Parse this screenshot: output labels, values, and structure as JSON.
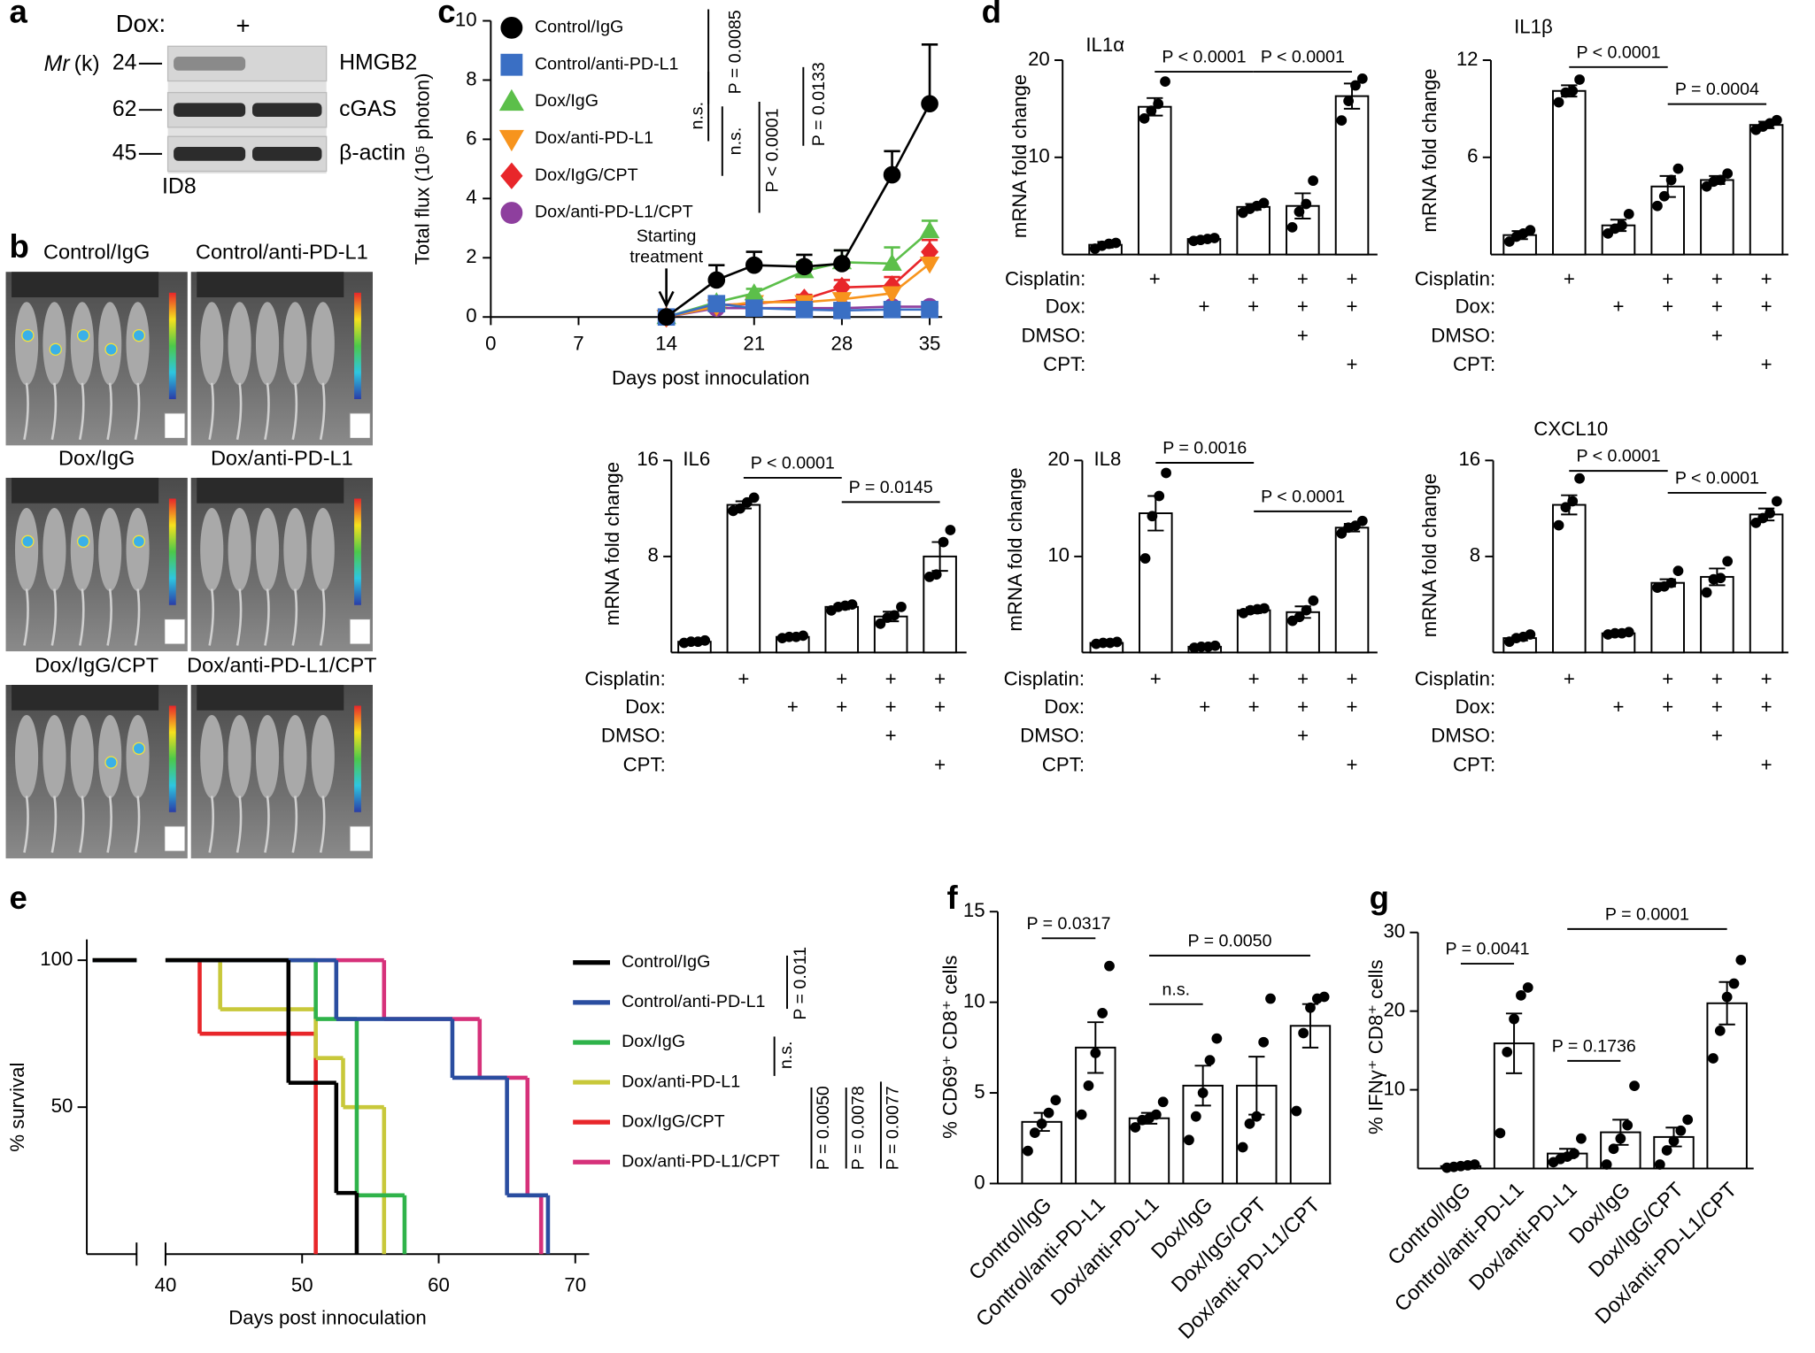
{
  "panel_labels": [
    "a",
    "b",
    "c",
    "d",
    "e",
    "f",
    "g"
  ],
  "blot": {
    "dox_label": "Dox:",
    "dox_marks": [
      null,
      "+"
    ],
    "mr_symbol": "Mr",
    "mr_unit": "(k)",
    "rows": [
      {
        "mw": 24,
        "protein": "HMGB2"
      },
      {
        "mw": 62,
        "protein": "cGAS"
      },
      {
        "mw": 45,
        "protein": "β-actin"
      }
    ],
    "cell_line": "ID8"
  },
  "imaging": {
    "groups": [
      "Control/IgG",
      "Control/anti-PD-L1",
      "Dox/IgG",
      "Dox/anti-PD-L1",
      "Dox/IgG/CPT",
      "Dox/anti-PD-L1/CPT"
    ]
  },
  "chart_data": [
    {
      "type": "line",
      "ylabel": "Total flux (10⁵ photon)",
      "xlabel": "Days post innoculation",
      "xlim": [
        0,
        36
      ],
      "xticks": [
        0,
        7,
        14,
        21,
        28,
        35
      ],
      "ylim": [
        0,
        10
      ],
      "yticks": [
        0,
        2,
        4,
        6,
        8,
        10
      ],
      "x": [
        14,
        18,
        21,
        25,
        28,
        32,
        35
      ],
      "series": [
        {
          "name": "Control/IgG",
          "color": "#000000",
          "marker": "circle",
          "values": [
            0,
            1.25,
            1.75,
            1.7,
            1.8,
            4.8,
            7.2
          ],
          "errors": [
            0,
            0.5,
            0.45,
            0.4,
            0.45,
            0.8,
            2.0
          ]
        },
        {
          "name": "Control/anti-PD-L1",
          "color": "#3a6fc4",
          "marker": "square",
          "values": [
            0,
            0.45,
            0.3,
            0.25,
            0.22,
            0.25,
            0.25
          ]
        },
        {
          "name": "Dox/IgG",
          "color": "#5cbf4a",
          "marker": "triangle-up",
          "values": [
            0,
            0.5,
            0.8,
            1.55,
            1.85,
            1.8,
            2.9
          ],
          "errors": [
            0,
            0.1,
            0.15,
            0.3,
            0.4,
            0.55,
            0.35
          ]
        },
        {
          "name": "Dox/anti-PD-L1",
          "color": "#f7941d",
          "marker": "triangle-down",
          "values": [
            0,
            0.35,
            0.5,
            0.5,
            0.6,
            0.8,
            1.8
          ]
        },
        {
          "name": "Dox/IgG/CPT",
          "color": "#e8262a",
          "marker": "diamond",
          "values": [
            0,
            0.4,
            0.45,
            0.6,
            1.0,
            1.05,
            2.2
          ],
          "errors": [
            0,
            0.1,
            0.1,
            0.15,
            0.25,
            0.3,
            0.4
          ]
        },
        {
          "name": "Dox/anti-PD-L1/CPT",
          "color": "#8e3f9e",
          "marker": "circle",
          "values": [
            0,
            0.3,
            0.3,
            0.3,
            0.3,
            0.35,
            0.35
          ]
        }
      ],
      "arrow_label": [
        "Starting",
        "treatment"
      ],
      "annotations": [
        "P = 0.0085",
        "n.s.",
        "n.s.",
        "P < 0.0001",
        "P = 0.0133"
      ]
    },
    {
      "type": "bar",
      "title": "IL1α",
      "ylabel": "mRNA fold change",
      "color": "#ffffff",
      "ylim": [
        0,
        20
      ],
      "yticks": [
        10,
        20
      ],
      "values": [
        1.0,
        15.2,
        1.6,
        4.9,
        5.0,
        16.3
      ],
      "errors": [
        0.3,
        0.9,
        0.2,
        0.3,
        1.3,
        1.3
      ],
      "points": [
        [
          0.6,
          0.9,
          1.1,
          1.2
        ],
        [
          14.0,
          14.8,
          15.5,
          17.8
        ],
        [
          1.4,
          1.5,
          1.6,
          1.7
        ],
        [
          4.3,
          4.7,
          5.0,
          5.3
        ],
        [
          2.8,
          4.4,
          5.2,
          7.6
        ],
        [
          13.8,
          15.8,
          17.4,
          18.1
        ]
      ],
      "annotations": [
        "P < 0.0001",
        "P < 0.0001"
      ],
      "conditions": [
        {
          "label": "Cisplatin:",
          "marks": [
            null,
            "+",
            null,
            "+",
            "+",
            "+"
          ]
        },
        {
          "label": "Dox:",
          "marks": [
            null,
            null,
            "+",
            "+",
            "+",
            "+"
          ]
        },
        {
          "label": "DMSO:",
          "marks": [
            null,
            null,
            null,
            null,
            "+",
            null
          ]
        },
        {
          "label": "CPT:",
          "marks": [
            null,
            null,
            null,
            null,
            null,
            "+"
          ]
        }
      ]
    },
    {
      "type": "bar",
      "title": "IL1β",
      "ylabel": "mRNA fold change",
      "color": "#ffffff",
      "ylim": [
        0,
        12
      ],
      "yticks": [
        6,
        12
      ],
      "values": [
        1.2,
        10.1,
        1.8,
        4.2,
        4.6,
        8.0
      ],
      "errors": [
        0.25,
        0.35,
        0.35,
        0.65,
        0.25,
        0.2
      ],
      "points": [
        [
          0.8,
          1.1,
          1.3,
          1.5
        ],
        [
          9.4,
          10.0,
          10.1,
          10.8
        ],
        [
          1.3,
          1.6,
          1.8,
          2.5
        ],
        [
          3.0,
          3.6,
          4.6,
          5.3
        ],
        [
          4.2,
          4.5,
          4.6,
          5.0
        ],
        [
          7.7,
          7.9,
          8.1,
          8.3
        ]
      ],
      "annotations": [
        "P < 0.0001",
        "P = 0.0004"
      ],
      "conditions": [
        {
          "label": "Cisplatin:",
          "marks": [
            null,
            "+",
            null,
            "+",
            "+",
            "+"
          ]
        },
        {
          "label": "Dox:",
          "marks": [
            null,
            null,
            "+",
            "+",
            "+",
            "+"
          ]
        },
        {
          "label": "DMSO:",
          "marks": [
            null,
            null,
            null,
            null,
            "+",
            null
          ]
        },
        {
          "label": "CPT:",
          "marks": [
            null,
            null,
            null,
            null,
            null,
            "+"
          ]
        }
      ]
    },
    {
      "type": "bar",
      "title": "IL6",
      "ylabel": "mRNA fold change",
      "color": "#ffffff",
      "ylim": [
        0,
        16
      ],
      "yticks": [
        8,
        16
      ],
      "values": [
        0.9,
        12.3,
        1.3,
        3.8,
        3.0,
        8.0
      ],
      "errors": [
        0.1,
        0.3,
        0.15,
        0.2,
        0.4,
        1.2
      ],
      "points": [
        [
          0.8,
          0.9,
          0.9,
          1.0
        ],
        [
          11.8,
          12.0,
          12.5,
          12.9
        ],
        [
          1.2,
          1.3,
          1.3,
          1.4
        ],
        [
          3.5,
          3.8,
          3.9,
          4.0
        ],
        [
          2.4,
          2.9,
          3.1,
          3.8
        ],
        [
          6.3,
          6.5,
          9.2,
          10.2
        ]
      ],
      "annotations": [
        "P < 0.0001",
        "P = 0.0145"
      ],
      "conditions": [
        {
          "label": "Cisplatin:",
          "marks": [
            null,
            "+",
            null,
            "+",
            "+",
            "+"
          ]
        },
        {
          "label": "Dox:",
          "marks": [
            null,
            null,
            "+",
            "+",
            "+",
            "+"
          ]
        },
        {
          "label": "DMSO:",
          "marks": [
            null,
            null,
            null,
            null,
            "+",
            null
          ]
        },
        {
          "label": "CPT:",
          "marks": [
            null,
            null,
            null,
            null,
            null,
            "+"
          ]
        }
      ]
    },
    {
      "type": "bar",
      "title": "IL8",
      "ylabel": "mRNA fold change",
      "color": "#ffffff",
      "ylim": [
        0,
        20
      ],
      "yticks": [
        10,
        20
      ],
      "values": [
        1.0,
        14.5,
        0.6,
        4.4,
        4.2,
        13.0
      ],
      "errors": [
        0.1,
        1.8,
        0.1,
        0.3,
        0.6,
        0.4
      ],
      "points": [
        [
          0.9,
          1.0,
          1.0,
          1.1
        ],
        [
          9.8,
          14.2,
          16.3,
          18.7
        ],
        [
          0.5,
          0.6,
          0.6,
          0.7
        ],
        [
          4.1,
          4.4,
          4.5,
          4.6
        ],
        [
          3.3,
          3.7,
          4.4,
          5.4
        ],
        [
          12.4,
          13.0,
          13.2,
          13.7
        ]
      ],
      "annotations": [
        "P = 0.0016",
        "P < 0.0001"
      ],
      "conditions": [
        {
          "label": "Cisplatin:",
          "marks": [
            null,
            "+",
            null,
            "+",
            "+",
            "+"
          ]
        },
        {
          "label": "Dox:",
          "marks": [
            null,
            null,
            "+",
            "+",
            "+",
            "+"
          ]
        },
        {
          "label": "DMSO:",
          "marks": [
            null,
            null,
            null,
            null,
            "+",
            null
          ]
        },
        {
          "label": "CPT:",
          "marks": [
            null,
            null,
            null,
            null,
            null,
            "+"
          ]
        }
      ]
    },
    {
      "type": "bar",
      "title": "CXCL10",
      "ylabel": "mRNA fold change",
      "color": "#ffffff",
      "ylim": [
        0,
        16
      ],
      "yticks": [
        8,
        16
      ],
      "values": [
        1.2,
        12.3,
        1.6,
        5.8,
        6.3,
        11.5
      ],
      "errors": [
        0.2,
        0.8,
        0.1,
        0.3,
        0.7,
        0.5
      ],
      "points": [
        [
          0.9,
          1.2,
          1.3,
          1.5
        ],
        [
          10.6,
          12.1,
          12.6,
          14.5
        ],
        [
          1.5,
          1.6,
          1.6,
          1.7
        ],
        [
          5.4,
          5.5,
          5.8,
          6.8
        ],
        [
          5.0,
          6.1,
          6.2,
          7.6
        ],
        [
          10.8,
          11.2,
          11.6,
          12.6
        ]
      ],
      "annotations": [
        "P < 0.0001",
        "P < 0.0001"
      ],
      "conditions": [
        {
          "label": "Cisplatin:",
          "marks": [
            null,
            "+",
            null,
            "+",
            "+",
            "+"
          ]
        },
        {
          "label": "Dox:",
          "marks": [
            null,
            null,
            "+",
            "+",
            "+",
            "+"
          ]
        },
        {
          "label": "DMSO:",
          "marks": [
            null,
            null,
            null,
            null,
            "+",
            null
          ]
        },
        {
          "label": "CPT:",
          "marks": [
            null,
            null,
            null,
            null,
            null,
            "+"
          ]
        }
      ]
    },
    {
      "type": "step",
      "ylabel": "% survival",
      "xlabel": "Days post innoculation",
      "xlim": [
        40,
        70
      ],
      "xticks": [
        40,
        50,
        60,
        70
      ],
      "ylim": [
        0,
        100
      ],
      "yticks": [
        50,
        100
      ],
      "series": [
        {
          "name": "Control/IgG",
          "color": "#000000",
          "x": [
            40,
            49,
            52.5,
            54
          ],
          "values": [
            100,
            58.3,
            20.8,
            0
          ]
        },
        {
          "name": "Control/anti-PD-L1",
          "color": "#2a4da0",
          "x": [
            40,
            52.5,
            61,
            65,
            68
          ],
          "values": [
            100,
            80,
            60,
            20,
            0
          ]
        },
        {
          "name": "Dox/IgG",
          "color": "#2fb34a",
          "x": [
            40,
            51,
            54,
            57.5
          ],
          "values": [
            100,
            80,
            20,
            0
          ]
        },
        {
          "name": "Dox/anti-PD-L1",
          "color": "#c8c83a",
          "x": [
            40,
            44,
            51,
            53,
            56
          ],
          "values": [
            100,
            83.3,
            66.7,
            50,
            0
          ]
        },
        {
          "name": "Dox/IgG/CPT",
          "color": "#e8262a",
          "x": [
            40,
            42.5,
            51
          ],
          "values": [
            100,
            75,
            0
          ]
        },
        {
          "name": "Dox/anti-PD-L1/CPT",
          "color": "#d6317a",
          "x": [
            40,
            56,
            63,
            66.5,
            67.5
          ],
          "values": [
            100,
            80,
            60,
            20,
            0
          ]
        }
      ],
      "annotations": [
        "P = 0.011",
        "n.s.",
        "P = 0.0050",
        "P = 0.0078",
        "P = 0.0077"
      ]
    },
    {
      "type": "bar",
      "ylabel": "% CD69⁺ CD8⁺ cells",
      "color": "#ffffff",
      "categories": [
        "Control/IgG",
        "Control/anti-PD-L1",
        "Dox/anti-PD-L1",
        "Dox/IgG",
        "Dox/IgG/CPT",
        "Dox/anti-PD-L1/CPT"
      ],
      "ylim": [
        0,
        15
      ],
      "yticks": [
        0,
        5,
        10,
        15
      ],
      "values": [
        3.4,
        7.5,
        3.6,
        5.4,
        5.4,
        8.7
      ],
      "errors": [
        0.5,
        1.4,
        0.3,
        1.1,
        1.6,
        1.2
      ],
      "points": [
        [
          1.8,
          2.8,
          3.3,
          3.9,
          4.6
        ],
        [
          3.8,
          5.4,
          7.2,
          9.4,
          12.0
        ],
        [
          3.1,
          3.5,
          3.6,
          3.8,
          4.5
        ],
        [
          2.4,
          3.7,
          5.0,
          6.8,
          8.0
        ],
        [
          2.0,
          3.3,
          3.7,
          7.8,
          10.2
        ],
        [
          4.0,
          8.3,
          9.7,
          10.2,
          10.3
        ]
      ],
      "annotations": [
        "P = 0.0317",
        "n.s.",
        "P = 0.0050"
      ]
    },
    {
      "type": "bar",
      "ylabel": "% IFNγ⁺ CD8⁺ cells",
      "color": "#ffffff",
      "categories": [
        "Control/IgG",
        "Control/anti-PD-L1",
        "Dox/anti-PD-L1",
        "Dox/IgG",
        "Dox/IgG/CPT",
        "Dox/anti-PD-L1/CPT"
      ],
      "ylim": [
        0,
        30
      ],
      "yticks": [
        10,
        20,
        30
      ],
      "values": [
        0.3,
        15.9,
        1.9,
        4.6,
        4.0,
        21.0
      ],
      "errors": [
        0.1,
        3.8,
        0.6,
        1.6,
        1.2,
        2.7
      ],
      "points": [
        [
          0.1,
          0.2,
          0.3,
          0.4,
          0.5
        ],
        [
          4.5,
          14.8,
          19.0,
          22.0,
          23.0
        ],
        [
          0.8,
          1.2,
          1.5,
          1.9,
          3.8
        ],
        [
          0.5,
          2.5,
          3.8,
          5.5,
          10.5
        ],
        [
          0.5,
          2.3,
          3.5,
          4.8,
          6.2
        ],
        [
          14.0,
          17.5,
          21.8,
          23.5,
          26.5
        ]
      ],
      "annotations": [
        "P = 0.0041",
        "P = 0.1736",
        "P = 0.0001"
      ]
    }
  ]
}
